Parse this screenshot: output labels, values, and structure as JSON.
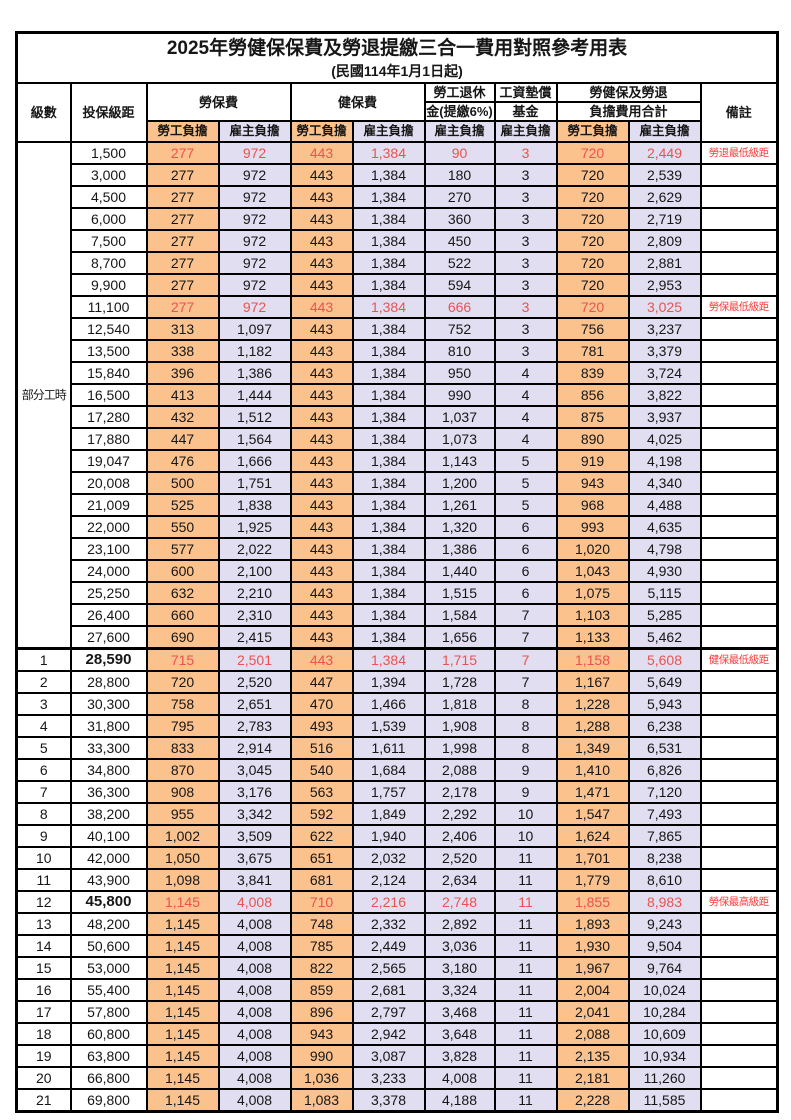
{
  "title": "2025年勞健保保費及勞退提繳三合一費用對照參考用表",
  "subtitle": "(民國114年1月1日起)",
  "colors": {
    "employee_column_bg": "#fbc28e",
    "employer_column_bg": "#e0def0",
    "highlight_value_text": "#ea5350",
    "note_text": "#fa3c3c",
    "border": "#000000"
  },
  "header": {
    "level": "級數",
    "bracket": "投保級距",
    "labor": "勞保費",
    "health": "健保費",
    "pension_top": "勞工退休",
    "pension_bottom": "金(提繳6%)",
    "fund_top": "工資墊償",
    "fund_bottom": "基金",
    "total_top": "勞健保及勞退",
    "total_bottom": "負擔費用合計",
    "note": "備註",
    "employee": "勞工負擔",
    "employer": "雇主負擔"
  },
  "table": {
    "rows": [
      {
        "level": "部分工時",
        "level_rowspan": 23,
        "bracket": "1,500",
        "labor_emp": "277",
        "labor_er": "972",
        "health_emp": "443",
        "health_er": "1,384",
        "pension_er": "90",
        "fund_er": "3",
        "total_emp": "720",
        "total_er": "2,449",
        "note": "勞退最低級距",
        "highlight": true
      },
      {
        "bracket": "3,000",
        "labor_emp": "277",
        "labor_er": "972",
        "health_emp": "443",
        "health_er": "1,384",
        "pension_er": "180",
        "fund_er": "3",
        "total_emp": "720",
        "total_er": "2,539",
        "note": ""
      },
      {
        "bracket": "4,500",
        "labor_emp": "277",
        "labor_er": "972",
        "health_emp": "443",
        "health_er": "1,384",
        "pension_er": "270",
        "fund_er": "3",
        "total_emp": "720",
        "total_er": "2,629",
        "note": ""
      },
      {
        "bracket": "6,000",
        "labor_emp": "277",
        "labor_er": "972",
        "health_emp": "443",
        "health_er": "1,384",
        "pension_er": "360",
        "fund_er": "3",
        "total_emp": "720",
        "total_er": "2,719",
        "note": ""
      },
      {
        "bracket": "7,500",
        "labor_emp": "277",
        "labor_er": "972",
        "health_emp": "443",
        "health_er": "1,384",
        "pension_er": "450",
        "fund_er": "3",
        "total_emp": "720",
        "total_er": "2,809",
        "note": ""
      },
      {
        "bracket": "8,700",
        "labor_emp": "277",
        "labor_er": "972",
        "health_emp": "443",
        "health_er": "1,384",
        "pension_er": "522",
        "fund_er": "3",
        "total_emp": "720",
        "total_er": "2,881",
        "note": ""
      },
      {
        "bracket": "9,900",
        "labor_emp": "277",
        "labor_er": "972",
        "health_emp": "443",
        "health_er": "1,384",
        "pension_er": "594",
        "fund_er": "3",
        "total_emp": "720",
        "total_er": "2,953",
        "note": ""
      },
      {
        "bracket": "11,100",
        "labor_emp": "277",
        "labor_er": "972",
        "health_emp": "443",
        "health_er": "1,384",
        "pension_er": "666",
        "fund_er": "3",
        "total_emp": "720",
        "total_er": "3,025",
        "note": "勞保最低級距",
        "highlight": true
      },
      {
        "bracket": "12,540",
        "labor_emp": "313",
        "labor_er": "1,097",
        "health_emp": "443",
        "health_er": "1,384",
        "pension_er": "752",
        "fund_er": "3",
        "total_emp": "756",
        "total_er": "3,237",
        "note": ""
      },
      {
        "bracket": "13,500",
        "labor_emp": "338",
        "labor_er": "1,182",
        "health_emp": "443",
        "health_er": "1,384",
        "pension_er": "810",
        "fund_er": "3",
        "total_emp": "781",
        "total_er": "3,379",
        "note": ""
      },
      {
        "bracket": "15,840",
        "labor_emp": "396",
        "labor_er": "1,386",
        "health_emp": "443",
        "health_er": "1,384",
        "pension_er": "950",
        "fund_er": "4",
        "total_emp": "839",
        "total_er": "3,724",
        "note": ""
      },
      {
        "bracket": "16,500",
        "labor_emp": "413",
        "labor_er": "1,444",
        "health_emp": "443",
        "health_er": "1,384",
        "pension_er": "990",
        "fund_er": "4",
        "total_emp": "856",
        "total_er": "3,822",
        "note": ""
      },
      {
        "bracket": "17,280",
        "labor_emp": "432",
        "labor_er": "1,512",
        "health_emp": "443",
        "health_er": "1,384",
        "pension_er": "1,037",
        "fund_er": "4",
        "total_emp": "875",
        "total_er": "3,937",
        "note": ""
      },
      {
        "bracket": "17,880",
        "labor_emp": "447",
        "labor_er": "1,564",
        "health_emp": "443",
        "health_er": "1,384",
        "pension_er": "1,073",
        "fund_er": "4",
        "total_emp": "890",
        "total_er": "4,025",
        "note": ""
      },
      {
        "bracket": "19,047",
        "labor_emp": "476",
        "labor_er": "1,666",
        "health_emp": "443",
        "health_er": "1,384",
        "pension_er": "1,143",
        "fund_er": "5",
        "total_emp": "919",
        "total_er": "4,198",
        "note": ""
      },
      {
        "bracket": "20,008",
        "labor_emp": "500",
        "labor_er": "1,751",
        "health_emp": "443",
        "health_er": "1,384",
        "pension_er": "1,200",
        "fund_er": "5",
        "total_emp": "943",
        "total_er": "4,340",
        "note": ""
      },
      {
        "bracket": "21,009",
        "labor_emp": "525",
        "labor_er": "1,838",
        "health_emp": "443",
        "health_er": "1,384",
        "pension_er": "1,261",
        "fund_er": "5",
        "total_emp": "968",
        "total_er": "4,488",
        "note": ""
      },
      {
        "bracket": "22,000",
        "labor_emp": "550",
        "labor_er": "1,925",
        "health_emp": "443",
        "health_er": "1,384",
        "pension_er": "1,320",
        "fund_er": "6",
        "total_emp": "993",
        "total_er": "4,635",
        "note": ""
      },
      {
        "bracket": "23,100",
        "labor_emp": "577",
        "labor_er": "2,022",
        "health_emp": "443",
        "health_er": "1,384",
        "pension_er": "1,386",
        "fund_er": "6",
        "total_emp": "1,020",
        "total_er": "4,798",
        "note": ""
      },
      {
        "bracket": "24,000",
        "labor_emp": "600",
        "labor_er": "2,100",
        "health_emp": "443",
        "health_er": "1,384",
        "pension_er": "1,440",
        "fund_er": "6",
        "total_emp": "1,043",
        "total_er": "4,930",
        "note": ""
      },
      {
        "bracket": "25,250",
        "labor_emp": "632",
        "labor_er": "2,210",
        "health_emp": "443",
        "health_er": "1,384",
        "pension_er": "1,515",
        "fund_er": "6",
        "total_emp": "1,075",
        "total_er": "5,115",
        "note": ""
      },
      {
        "bracket": "26,400",
        "labor_emp": "660",
        "labor_er": "2,310",
        "health_emp": "443",
        "health_er": "1,384",
        "pension_er": "1,584",
        "fund_er": "7",
        "total_emp": "1,103",
        "total_er": "5,285",
        "note": ""
      },
      {
        "bracket": "27,600",
        "labor_emp": "690",
        "labor_er": "2,415",
        "health_emp": "443",
        "health_er": "1,384",
        "pension_er": "1,656",
        "fund_er": "7",
        "total_emp": "1,133",
        "total_er": "5,462",
        "note": ""
      },
      {
        "level": "1",
        "bracket": "28,590",
        "labor_emp": "715",
        "labor_er": "2,501",
        "health_emp": "443",
        "health_er": "1,384",
        "pension_er": "1,715",
        "fund_er": "7",
        "total_emp": "1,158",
        "total_er": "5,608",
        "note": "健保最低級距",
        "highlight": true,
        "bold_bracket": true,
        "thick_top": true
      },
      {
        "level": "2",
        "bracket": "28,800",
        "labor_emp": "720",
        "labor_er": "2,520",
        "health_emp": "447",
        "health_er": "1,394",
        "pension_er": "1,728",
        "fund_er": "7",
        "total_emp": "1,167",
        "total_er": "5,649",
        "note": ""
      },
      {
        "level": "3",
        "bracket": "30,300",
        "labor_emp": "758",
        "labor_er": "2,651",
        "health_emp": "470",
        "health_er": "1,466",
        "pension_er": "1,818",
        "fund_er": "8",
        "total_emp": "1,228",
        "total_er": "5,943",
        "note": ""
      },
      {
        "level": "4",
        "bracket": "31,800",
        "labor_emp": "795",
        "labor_er": "2,783",
        "health_emp": "493",
        "health_er": "1,539",
        "pension_er": "1,908",
        "fund_er": "8",
        "total_emp": "1,288",
        "total_er": "6,238",
        "note": ""
      },
      {
        "level": "5",
        "bracket": "33,300",
        "labor_emp": "833",
        "labor_er": "2,914",
        "health_emp": "516",
        "health_er": "1,611",
        "pension_er": "1,998",
        "fund_er": "8",
        "total_emp": "1,349",
        "total_er": "6,531",
        "note": ""
      },
      {
        "level": "6",
        "bracket": "34,800",
        "labor_emp": "870",
        "labor_er": "3,045",
        "health_emp": "540",
        "health_er": "1,684",
        "pension_er": "2,088",
        "fund_er": "9",
        "total_emp": "1,410",
        "total_er": "6,826",
        "note": ""
      },
      {
        "level": "7",
        "bracket": "36,300",
        "labor_emp": "908",
        "labor_er": "3,176",
        "health_emp": "563",
        "health_er": "1,757",
        "pension_er": "2,178",
        "fund_er": "9",
        "total_emp": "1,471",
        "total_er": "7,120",
        "note": ""
      },
      {
        "level": "8",
        "bracket": "38,200",
        "labor_emp": "955",
        "labor_er": "3,342",
        "health_emp": "592",
        "health_er": "1,849",
        "pension_er": "2,292",
        "fund_er": "10",
        "total_emp": "1,547",
        "total_er": "7,493",
        "note": ""
      },
      {
        "level": "9",
        "bracket": "40,100",
        "labor_emp": "1,002",
        "labor_er": "3,509",
        "health_emp": "622",
        "health_er": "1,940",
        "pension_er": "2,406",
        "fund_er": "10",
        "total_emp": "1,624",
        "total_er": "7,865",
        "note": ""
      },
      {
        "level": "10",
        "bracket": "42,000",
        "labor_emp": "1,050",
        "labor_er": "3,675",
        "health_emp": "651",
        "health_er": "2,032",
        "pension_er": "2,520",
        "fund_er": "11",
        "total_emp": "1,701",
        "total_er": "8,238",
        "note": ""
      },
      {
        "level": "11",
        "bracket": "43,900",
        "labor_emp": "1,098",
        "labor_er": "3,841",
        "health_emp": "681",
        "health_er": "2,124",
        "pension_er": "2,634",
        "fund_er": "11",
        "total_emp": "1,779",
        "total_er": "8,610",
        "note": ""
      },
      {
        "level": "12",
        "bracket": "45,800",
        "labor_emp": "1,145",
        "labor_er": "4,008",
        "health_emp": "710",
        "health_er": "2,216",
        "pension_er": "2,748",
        "fund_er": "11",
        "total_emp": "1,855",
        "total_er": "8,983",
        "note": "勞保最高級距",
        "highlight": true,
        "bold_bracket": true
      },
      {
        "level": "13",
        "bracket": "48,200",
        "labor_emp": "1,145",
        "labor_er": "4,008",
        "health_emp": "748",
        "health_er": "2,332",
        "pension_er": "2,892",
        "fund_er": "11",
        "total_emp": "1,893",
        "total_er": "9,243",
        "note": ""
      },
      {
        "level": "14",
        "bracket": "50,600",
        "labor_emp": "1,145",
        "labor_er": "4,008",
        "health_emp": "785",
        "health_er": "2,449",
        "pension_er": "3,036",
        "fund_er": "11",
        "total_emp": "1,930",
        "total_er": "9,504",
        "note": ""
      },
      {
        "level": "15",
        "bracket": "53,000",
        "labor_emp": "1,145",
        "labor_er": "4,008",
        "health_emp": "822",
        "health_er": "2,565",
        "pension_er": "3,180",
        "fund_er": "11",
        "total_emp": "1,967",
        "total_er": "9,764",
        "note": ""
      },
      {
        "level": "16",
        "bracket": "55,400",
        "labor_emp": "1,145",
        "labor_er": "4,008",
        "health_emp": "859",
        "health_er": "2,681",
        "pension_er": "3,324",
        "fund_er": "11",
        "total_emp": "2,004",
        "total_er": "10,024",
        "note": ""
      },
      {
        "level": "17",
        "bracket": "57,800",
        "labor_emp": "1,145",
        "labor_er": "4,008",
        "health_emp": "896",
        "health_er": "2,797",
        "pension_er": "3,468",
        "fund_er": "11",
        "total_emp": "2,041",
        "total_er": "10,284",
        "note": ""
      },
      {
        "level": "18",
        "bracket": "60,800",
        "labor_emp": "1,145",
        "labor_er": "4,008",
        "health_emp": "943",
        "health_er": "2,942",
        "pension_er": "3,648",
        "fund_er": "11",
        "total_emp": "2,088",
        "total_er": "10,609",
        "note": ""
      },
      {
        "level": "19",
        "bracket": "63,800",
        "labor_emp": "1,145",
        "labor_er": "4,008",
        "health_emp": "990",
        "health_er": "3,087",
        "pension_er": "3,828",
        "fund_er": "11",
        "total_emp": "2,135",
        "total_er": "10,934",
        "note": ""
      },
      {
        "level": "20",
        "bracket": "66,800",
        "labor_emp": "1,145",
        "labor_er": "4,008",
        "health_emp": "1,036",
        "health_er": "3,233",
        "pension_er": "4,008",
        "fund_er": "11",
        "total_emp": "2,181",
        "total_er": "11,260",
        "note": ""
      },
      {
        "level": "21",
        "bracket": "69,800",
        "labor_emp": "1,145",
        "labor_er": "4,008",
        "health_emp": "1,083",
        "health_er": "3,378",
        "pension_er": "4,188",
        "fund_er": "11",
        "total_emp": "2,228",
        "total_er": "11,585",
        "note": ""
      }
    ]
  }
}
